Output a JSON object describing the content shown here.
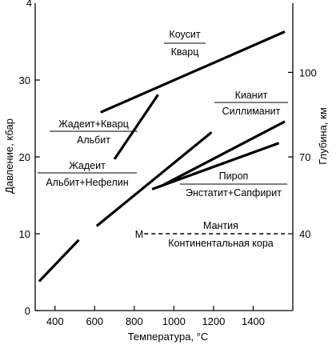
{
  "chart_data": {
    "type": "line",
    "xlabel": "Температура, °С",
    "ylabel": "Давление, кбар",
    "ylabel_right": "Глубина, км",
    "xlim": [
      300,
      1600
    ],
    "ylim": [
      0,
      40
    ],
    "xticks": [
      "400",
      "600",
      "800",
      "1000",
      "1200",
      "1400"
    ],
    "xtick_values": [
      400,
      600,
      800,
      1000,
      1200,
      1400
    ],
    "yticks": [
      "0",
      "10",
      "20",
      "30"
    ],
    "ytick_values": [
      0,
      10,
      20,
      30
    ],
    "yticks_right": [
      "40",
      "70",
      "100"
    ],
    "ytick_right_pressure": [
      10,
      20,
      31
    ],
    "top_left_tick": "4",
    "series": [
      {
        "name": "Коусит / Кварц",
        "reaction_top": "Коусит",
        "reaction_bottom": "Кварц",
        "segments": [
          [
            [
              630,
              25.8
            ],
            [
              1560,
              36.3
            ]
          ]
        ]
      },
      {
        "name": "Жадеит+Кварц / Альбит",
        "reaction_top": "Жадеит+Кварц",
        "reaction_bottom": "Альбит",
        "segments": [
          [
            [
              700,
              19.7
            ],
            [
              920,
              28.1
            ]
          ]
        ]
      },
      {
        "name": "Жадеит / Альбит+Нефелин",
        "reaction_top": "Жадеит",
        "reaction_bottom": "Альбит+Нефелин",
        "segments": [
          [
            [
              320,
              3.8
            ],
            [
              520,
              9.2
            ]
          ],
          [
            [
              610,
              11.0
            ],
            [
              1190,
              23.2
            ]
          ]
        ]
      },
      {
        "name": "Кианит / Силлиманит",
        "reaction_top": "Кианит",
        "reaction_bottom": "Силлиманит",
        "segments": [
          [
            [
              950,
              16.4
            ],
            [
              1560,
              24.6
            ]
          ]
        ]
      },
      {
        "name": "Пироп / Энстатит+Сапфирит",
        "reaction_top": "Пироп",
        "reaction_bottom": "Энстатит+Сапфирит",
        "segments": [
          [
            [
              890,
              15.8
            ],
            [
              1530,
              21.8
            ]
          ]
        ]
      }
    ],
    "boundary": {
      "marker": "М",
      "label_top": "Мантия",
      "label_bottom": "Континентальная кора",
      "pressure": 10,
      "x_range": [
        850,
        1560
      ],
      "style": "dashed"
    },
    "grid": false,
    "legend": "none"
  }
}
